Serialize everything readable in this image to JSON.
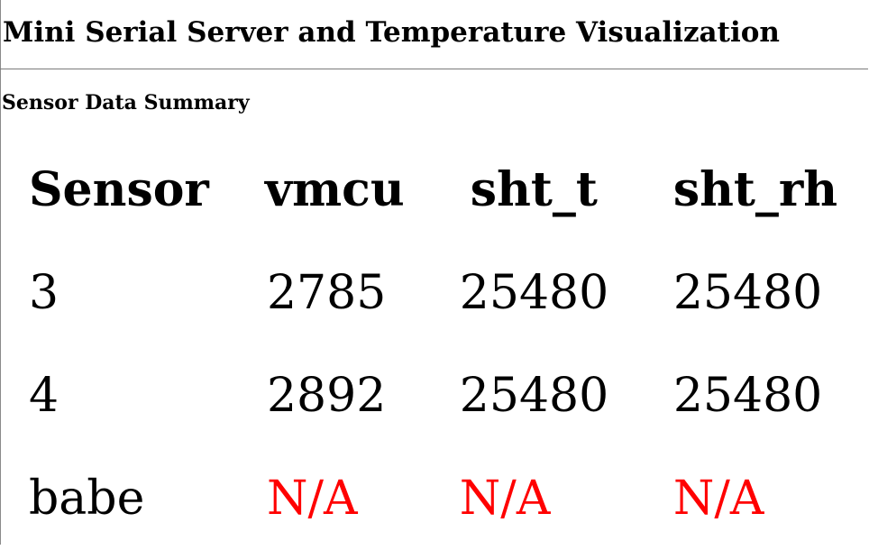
{
  "page": {
    "title": "Mini Serial Server and Temperature Visualization",
    "section_heading": "Sensor Data Summary"
  },
  "table": {
    "headers": [
      "Sensor",
      "vmcu",
      "sht_t",
      "sht_rh"
    ],
    "rows": [
      [
        "3",
        "2785",
        "25480",
        "25480"
      ],
      [
        "4",
        "2892",
        "25480",
        "25480"
      ],
      [
        "babe",
        "N/A",
        "N/A",
        "N/A"
      ]
    ]
  },
  "colors": {
    "missing_value": "#ff0000"
  }
}
